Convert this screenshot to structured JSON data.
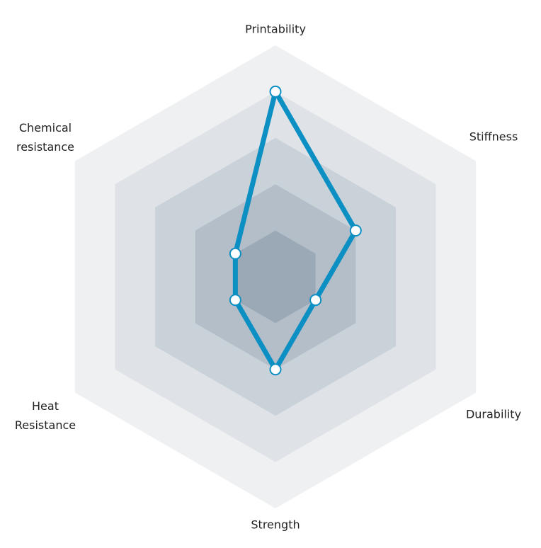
{
  "chart_data": {
    "type": "radar",
    "axes": [
      "Printability",
      "Stiffness",
      "Durability",
      "Strength",
      "Heat\nResistance",
      "Chemical\nresistance"
    ],
    "values": [
      4,
      2,
      1,
      2,
      1,
      1
    ],
    "range": [
      0,
      5
    ],
    "rings": 5,
    "grid": true,
    "colors": {
      "series": "#0c8fc2",
      "rings": [
        "#eef0f2",
        "#dfe3e8",
        "#c9d1d9",
        "#b3bec9",
        "#9ba9b7"
      ]
    }
  }
}
